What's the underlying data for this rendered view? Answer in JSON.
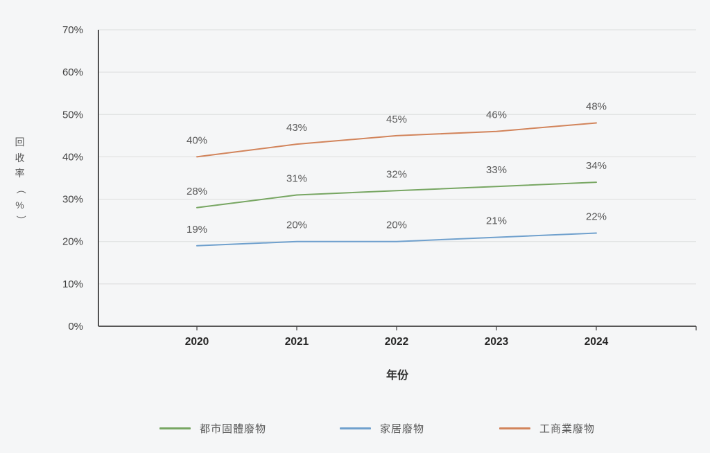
{
  "page": {
    "background": "#f5f6f7"
  },
  "chart_data": {
    "type": "line",
    "title": "",
    "categories": [
      "2020",
      "2021",
      "2022",
      "2023",
      "2024"
    ],
    "xlabel": "年份",
    "ylabel": "回收率（%）",
    "ylim": [
      0,
      70
    ],
    "ytick_step": 10,
    "ytick_suffix": "%",
    "grid": true,
    "legend_position": "bottom",
    "series": [
      {
        "name": "都市固體廢物",
        "color": "#77a662",
        "values": [
          28,
          31,
          32,
          33,
          34
        ],
        "labels": [
          "28%",
          "31%",
          "32%",
          "33%",
          "34%"
        ]
      },
      {
        "name": "家居廢物",
        "color": "#6fa0cd",
        "values": [
          19,
          20,
          20,
          21,
          22
        ],
        "labels": [
          "19%",
          "20%",
          "20%",
          "21%",
          "22%"
        ]
      },
      {
        "name": "工商業廢物",
        "color": "#d2845b",
        "values": [
          40,
          43,
          45,
          46,
          48
        ],
        "labels": [
          "40%",
          "43%",
          "45%",
          "46%",
          "48%"
        ]
      }
    ],
    "colors": {
      "grid": "#dcdddd",
      "axis": "#404040",
      "tick_text": "#3f3f3f",
      "year_text": "#262626",
      "data_label_text": "#595959",
      "legend_text": "#595959"
    }
  }
}
